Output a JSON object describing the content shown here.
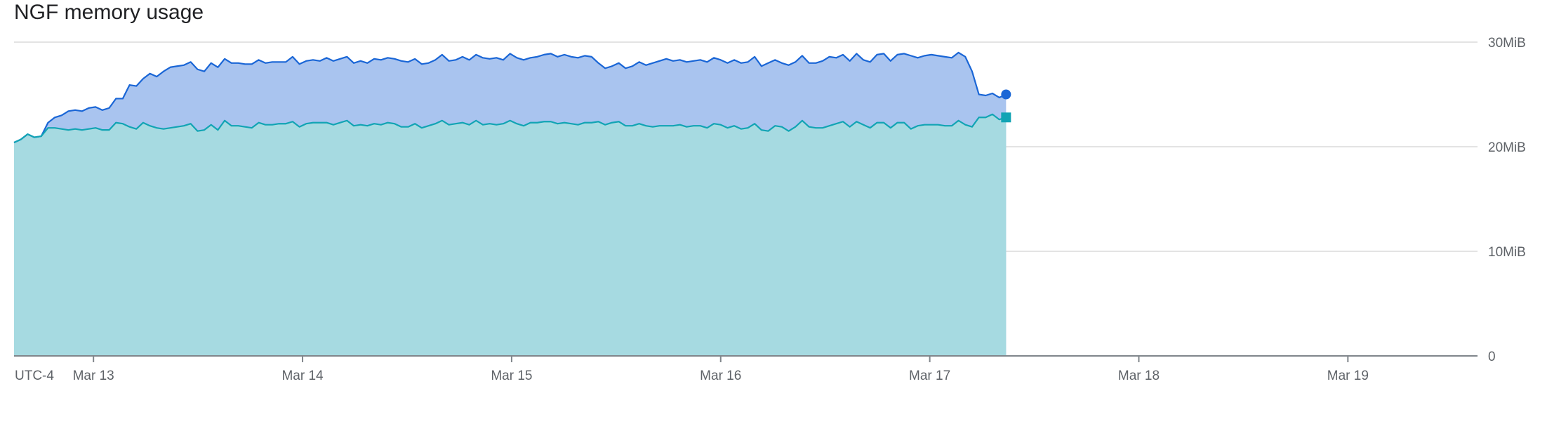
{
  "chart_data": {
    "type": "area",
    "title": "NGF memory usage",
    "timezone_label": "UTC-4",
    "xlabel": "",
    "ylabel": "",
    "x_ticks": [
      "Mar 13",
      "Mar 14",
      "Mar 15",
      "Mar 16",
      "Mar 17",
      "Mar 18",
      "Mar 19"
    ],
    "x_tick_days": [
      13,
      14,
      15,
      16,
      17,
      18,
      19
    ],
    "x_range_days": [
      12.62,
      19.62
    ],
    "y_ticks": [
      "0",
      "10MiB",
      "20MiB",
      "30MiB"
    ],
    "y_tick_values": [
      0,
      10,
      20,
      30
    ],
    "ylim": [
      0,
      30
    ],
    "y_unit": "MiB",
    "grid": true,
    "colors": {
      "upper_line": "#1a66d6",
      "upper_fill": "#a9c4ef",
      "lower_line": "#12a4b4",
      "lower_fill": "#a6dae1",
      "grid": "#e3e3e3",
      "axis": "#80868b"
    },
    "series": [
      {
        "marker": "circle",
        "x_start_day": 12.62,
        "x_step_day": 0.0325,
        "values": [
          20.4,
          20.7,
          21.2,
          20.9,
          21.0,
          22.3,
          22.8,
          23.0,
          23.4,
          23.5,
          23.4,
          23.7,
          23.8,
          23.5,
          23.7,
          24.6,
          24.6,
          25.9,
          25.8,
          26.5,
          27.0,
          26.7,
          27.2,
          27.6,
          27.7,
          27.8,
          28.1,
          27.4,
          27.2,
          28.0,
          27.6,
          28.4,
          28.0,
          28.0,
          27.9,
          27.9,
          28.3,
          28.0,
          28.1,
          28.1,
          28.1,
          28.6,
          27.9,
          28.2,
          28.3,
          28.2,
          28.5,
          28.2,
          28.4,
          28.6,
          28.0,
          28.2,
          28.0,
          28.4,
          28.3,
          28.5,
          28.4,
          28.2,
          28.1,
          28.4,
          27.9,
          28.0,
          28.3,
          28.8,
          28.2,
          28.3,
          28.6,
          28.3,
          28.8,
          28.5,
          28.4,
          28.5,
          28.3,
          28.9,
          28.5,
          28.3,
          28.5,
          28.6,
          28.8,
          28.9,
          28.6,
          28.8,
          28.6,
          28.5,
          28.7,
          28.6,
          28.0,
          27.5,
          27.7,
          28.0,
          27.5,
          27.7,
          28.1,
          27.8,
          28.0,
          28.2,
          28.4,
          28.2,
          28.3,
          28.1,
          28.2,
          28.3,
          28.1,
          28.5,
          28.3,
          28.0,
          28.3,
          28.0,
          28.1,
          28.6,
          27.7,
          28.0,
          28.3,
          28.0,
          27.8,
          28.1,
          28.7,
          28.0,
          28.0,
          28.2,
          28.6,
          28.5,
          28.8,
          28.2,
          28.9,
          28.3,
          28.1,
          28.8,
          28.9,
          28.2,
          28.8,
          28.9,
          28.7,
          28.5,
          28.7,
          28.8,
          28.7,
          28.6,
          28.5,
          29.0,
          28.6,
          27.2,
          25.0,
          24.9,
          25.1,
          24.7,
          25.0
        ]
      },
      {
        "marker": "square",
        "x_start_day": 12.62,
        "x_step_day": 0.0325,
        "values": [
          20.4,
          20.7,
          21.2,
          20.9,
          21.0,
          21.8,
          21.8,
          21.7,
          21.6,
          21.7,
          21.6,
          21.7,
          21.8,
          21.6,
          21.6,
          22.3,
          22.2,
          21.9,
          21.7,
          22.3,
          22.0,
          21.8,
          21.7,
          21.8,
          21.9,
          22.0,
          22.2,
          21.5,
          21.6,
          22.1,
          21.6,
          22.5,
          22.0,
          22.0,
          21.9,
          21.8,
          22.3,
          22.1,
          22.1,
          22.2,
          22.2,
          22.4,
          21.9,
          22.2,
          22.3,
          22.3,
          22.3,
          22.1,
          22.3,
          22.5,
          22.0,
          22.1,
          22.0,
          22.2,
          22.1,
          22.3,
          22.2,
          21.9,
          21.9,
          22.2,
          21.8,
          22.0,
          22.2,
          22.5,
          22.1,
          22.2,
          22.3,
          22.1,
          22.5,
          22.1,
          22.2,
          22.1,
          22.2,
          22.5,
          22.2,
          22.0,
          22.3,
          22.3,
          22.4,
          22.4,
          22.2,
          22.3,
          22.2,
          22.1,
          22.3,
          22.3,
          22.4,
          22.1,
          22.3,
          22.4,
          22.0,
          22.0,
          22.2,
          22.0,
          21.9,
          22.0,
          22.0,
          22.0,
          22.1,
          21.9,
          22.0,
          22.0,
          21.8,
          22.2,
          22.1,
          21.8,
          22.0,
          21.7,
          21.8,
          22.2,
          21.6,
          21.5,
          22.0,
          21.9,
          21.5,
          21.9,
          22.5,
          21.9,
          21.8,
          21.8,
          22.0,
          22.2,
          22.4,
          21.9,
          22.4,
          22.1,
          21.8,
          22.3,
          22.3,
          21.8,
          22.3,
          22.3,
          21.7,
          22.0,
          22.1,
          22.1,
          22.1,
          22.0,
          22.0,
          22.5,
          22.1,
          21.9,
          22.8,
          22.8,
          23.1,
          22.6,
          22.8
        ]
      }
    ]
  }
}
